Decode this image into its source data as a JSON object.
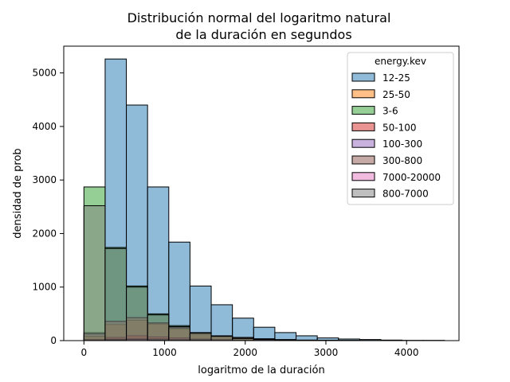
{
  "chart_data": {
    "type": "histogram",
    "title_lines": [
      "Distribución normal del logaritmo natural",
      "de la duración en segundos"
    ],
    "xlabel": "logaritmo de la duración",
    "ylabel": "densidad de prob",
    "xlim": [
      -250,
      4650
    ],
    "ylim": [
      0,
      5500
    ],
    "xticks": [
      0,
      1000,
      2000,
      3000,
      4000
    ],
    "yticks": [
      0,
      1000,
      2000,
      3000,
      4000,
      5000
    ],
    "bin_edges": [
      0,
      263,
      526,
      789,
      1052,
      1315,
      1578,
      1841,
      2104,
      2367,
      2630,
      2893,
      3156,
      3419,
      3682,
      3945,
      4208,
      4471
    ],
    "legend": {
      "title": "energy.kev",
      "placement": "top-right"
    },
    "series": [
      {
        "name": "12-25",
        "color": "#1f77b4",
        "values": [
          150,
          5260,
          4400,
          2870,
          1840,
          1020,
          670,
          420,
          250,
          150,
          90,
          50,
          30,
          20,
          10,
          5,
          5
        ]
      },
      {
        "name": "25-50",
        "color": "#ff7f0e",
        "values": [
          80,
          300,
          380,
          310,
          220,
          120,
          80,
          50,
          30,
          15,
          8,
          5,
          3,
          2,
          1,
          0,
          0
        ]
      },
      {
        "name": "3-6",
        "color": "#2ca02c",
        "values": [
          2870,
          1740,
          1020,
          500,
          280,
          150,
          80,
          40,
          20,
          10,
          5,
          3,
          2,
          1,
          0,
          0,
          0
        ]
      },
      {
        "name": "50-100",
        "color": "#d62728",
        "values": [
          20,
          60,
          90,
          70,
          50,
          30,
          20,
          10,
          5,
          3,
          2,
          1,
          0,
          0,
          0,
          0,
          0
        ]
      },
      {
        "name": "100-300",
        "color": "#9467bd",
        "values": [
          10,
          30,
          40,
          35,
          25,
          15,
          10,
          5,
          3,
          2,
          1,
          0,
          0,
          0,
          0,
          0,
          0
        ]
      },
      {
        "name": "300-800",
        "color": "#8c564b",
        "values": [
          130,
          360,
          430,
          330,
          240,
          140,
          90,
          60,
          35,
          20,
          10,
          6,
          4,
          2,
          1,
          0,
          0
        ]
      },
      {
        "name": "7000-20000",
        "color": "#e377c2",
        "values": [
          5,
          15,
          20,
          15,
          10,
          8,
          5,
          3,
          2,
          1,
          0,
          0,
          0,
          0,
          0,
          0,
          0
        ]
      },
      {
        "name": "800-7000",
        "color": "#7f7f7f",
        "values": [
          2520,
          1720,
          1000,
          480,
          260,
          140,
          80,
          40,
          20,
          10,
          5,
          3,
          2,
          1,
          0,
          0,
          0
        ]
      }
    ]
  }
}
